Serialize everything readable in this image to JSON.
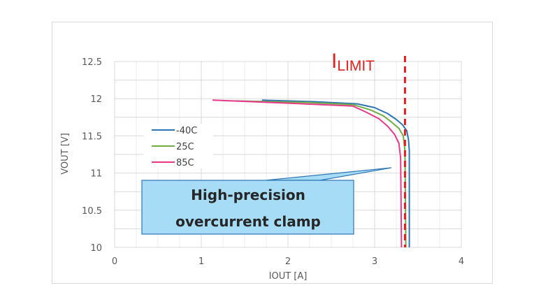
{
  "chart_data": {
    "type": "line",
    "xlabel": "IOUT [A]",
    "ylabel": "VOUT [V]",
    "xlim": [
      0,
      4
    ],
    "ylim": [
      10,
      12.5
    ],
    "xticks": [
      "0",
      "1",
      "2",
      "3",
      "4"
    ],
    "yticks": [
      "10",
      "10.5",
      "11",
      "11.5",
      "12",
      "12.5"
    ],
    "grid": true,
    "legend_position": "left",
    "series": [
      {
        "name": "-40C",
        "color": "#2e75b6",
        "points": [
          [
            1.7,
            11.98
          ],
          [
            2.3,
            11.96
          ],
          [
            2.8,
            11.93
          ],
          [
            3.0,
            11.88
          ],
          [
            3.15,
            11.8
          ],
          [
            3.25,
            11.72
          ],
          [
            3.32,
            11.65
          ],
          [
            3.37,
            11.57
          ],
          [
            3.39,
            11.45
          ],
          [
            3.4,
            11.3
          ],
          [
            3.4,
            10.0
          ]
        ]
      },
      {
        "name": "25C",
        "color": "#70ad47",
        "points": [
          [
            1.4,
            11.97
          ],
          [
            2.2,
            11.95
          ],
          [
            2.75,
            11.92
          ],
          [
            2.95,
            11.85
          ],
          [
            3.1,
            11.77
          ],
          [
            3.2,
            11.68
          ],
          [
            3.28,
            11.6
          ],
          [
            3.33,
            11.5
          ],
          [
            3.35,
            11.3
          ],
          [
            3.36,
            10.0
          ]
        ]
      },
      {
        "name": "85C",
        "color": "#e8388a",
        "points": [
          [
            1.13,
            11.98
          ],
          [
            2.0,
            11.94
          ],
          [
            2.75,
            11.9
          ],
          [
            2.9,
            11.82
          ],
          [
            3.05,
            11.73
          ],
          [
            3.15,
            11.63
          ],
          [
            3.23,
            11.52
          ],
          [
            3.28,
            11.4
          ],
          [
            3.3,
            11.2
          ],
          [
            3.31,
            10.0
          ]
        ]
      }
    ],
    "limit_line": {
      "x": 3.35,
      "label_main": "I",
      "label_sub": "LIMIT",
      "color": "#e02020"
    },
    "callout": {
      "line1": "High-precision",
      "line2": "overcurrent clamp",
      "fill": "#a6dcf5",
      "border": "#2e75b6"
    }
  }
}
